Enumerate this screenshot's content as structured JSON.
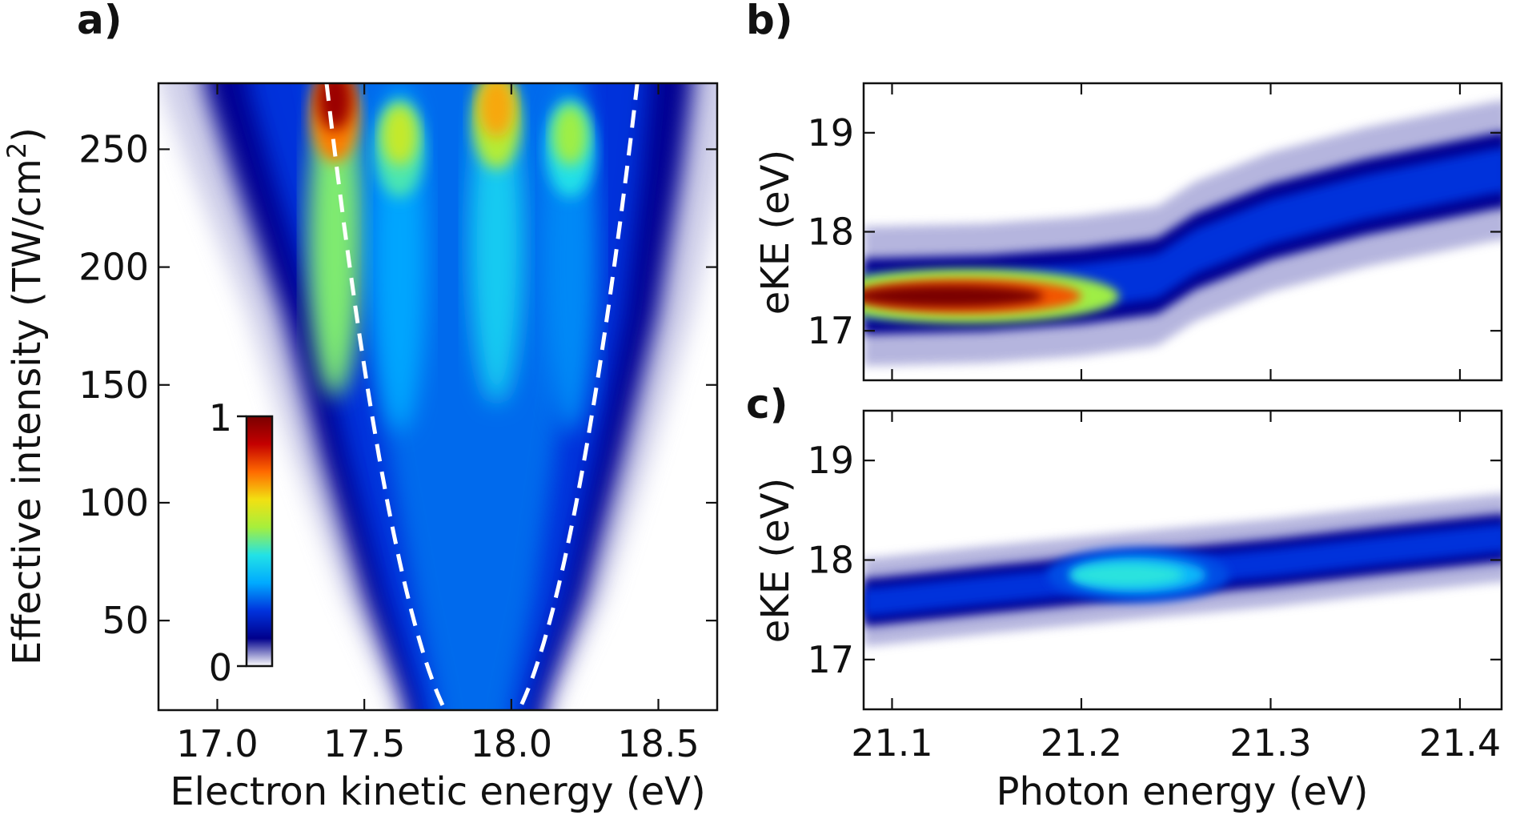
{
  "figure": {
    "colormap": [
      "#ffffff",
      "#00008c",
      "#0033dd",
      "#00aaff",
      "#22e2e6",
      "#a6ef3c",
      "#f2e012",
      "#ff6a00",
      "#c40000",
      "#7a0000"
    ]
  },
  "chart_data": [
    {
      "panel": "a)",
      "type": "heatmap",
      "xlabel": "Electron kinetic energy (eV)",
      "ylabel_main": "Effective intensity (TW/cm",
      "ylabel_sup": "2",
      "ylabel_end": ")",
      "xlim": [
        16.8,
        18.7
      ],
      "ylim": [
        12,
        278
      ],
      "xticks": [
        17.0,
        17.5,
        18.0,
        18.5
      ],
      "xtick_labels": [
        "17.0",
        "17.5",
        "18.0",
        "18.5"
      ],
      "yticks": [
        50,
        100,
        150,
        200,
        250
      ],
      "ytick_labels": [
        "50",
        "100",
        "150",
        "200",
        "250"
      ],
      "description_curve": "dashed white parabola (ponderomotive shift) with vertex near 17.9 eV at ~0 TW/cm2",
      "envelope": {
        "center_line": [
          [
            0,
            17.9
          ],
          [
            278,
            17.85
          ]
        ],
        "left_edge": [
          [
            12,
            17.65
          ],
          [
            60,
            17.5
          ],
          [
            120,
            17.35
          ],
          [
            180,
            17.22
          ],
          [
            240,
            17.05
          ],
          [
            278,
            16.95
          ]
        ],
        "right_edge": [
          [
            12,
            18.1
          ],
          [
            60,
            18.25
          ],
          [
            120,
            18.38
          ],
          [
            180,
            18.5
          ],
          [
            240,
            18.58
          ],
          [
            278,
            18.62
          ]
        ]
      },
      "dashed_curve": {
        "vertex_x": 17.9,
        "vertex_y": -4,
        "coef": 1010
      },
      "peaks": [
        {
          "x": 17.4,
          "y": 265,
          "value": 0.95,
          "label": "strongest (red)"
        },
        {
          "x": 17.62,
          "y": 250,
          "value": 0.6
        },
        {
          "x": 17.95,
          "y": 262,
          "value": 0.72
        },
        {
          "x": 18.2,
          "y": 250,
          "value": 0.55
        }
      ],
      "colorbar": {
        "min_label": "0",
        "max_label": "1",
        "min": 0,
        "max": 1
      }
    },
    {
      "panel": "b)",
      "type": "heatmap",
      "xlabel": "",
      "ylabel": "eKE (eV)",
      "xlim": [
        21.085,
        21.422
      ],
      "ylim": [
        16.5,
        19.5
      ],
      "xticks": [
        21.1,
        21.2,
        21.3,
        21.4
      ],
      "yticks": [
        17,
        18,
        19
      ],
      "ytick_labels": [
        "17",
        "18",
        "19"
      ],
      "ridge_points": [
        [
          21.09,
          17.35
        ],
        [
          21.15,
          17.38
        ],
        [
          21.2,
          17.45
        ],
        [
          21.24,
          17.55
        ],
        [
          21.26,
          17.8
        ],
        [
          21.3,
          18.1
        ],
        [
          21.35,
          18.35
        ],
        [
          21.42,
          18.62
        ]
      ],
      "peak_region": {
        "x_range": [
          21.09,
          21.19
        ],
        "eKE": 17.35,
        "value": 1.0
      }
    },
    {
      "panel": "c)",
      "type": "heatmap",
      "xlabel": "Photon energy (eV)",
      "ylabel": "eKE (eV)",
      "xlim": [
        21.085,
        21.422
      ],
      "ylim": [
        16.5,
        19.5
      ],
      "xticks": [
        21.1,
        21.2,
        21.3,
        21.4
      ],
      "xtick_labels": [
        "21.1",
        "21.2",
        "21.3",
        "21.4"
      ],
      "yticks": [
        17,
        18,
        19
      ],
      "ytick_labels": [
        "17",
        "18",
        "19"
      ],
      "ridge_points": [
        [
          21.09,
          17.58
        ],
        [
          21.15,
          17.7
        ],
        [
          21.22,
          17.83
        ],
        [
          21.3,
          17.97
        ],
        [
          21.36,
          18.1
        ],
        [
          21.42,
          18.22
        ]
      ],
      "peak_region": {
        "x_range": [
          21.2,
          21.26
        ],
        "eKE": 17.85,
        "value": 0.45
      }
    }
  ]
}
